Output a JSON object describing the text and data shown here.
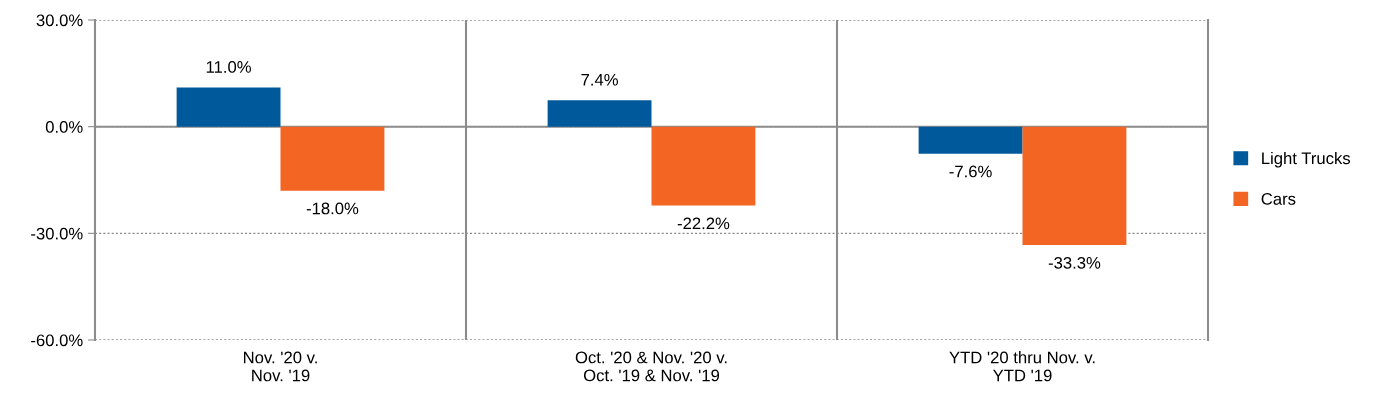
{
  "chart_data": {
    "type": "bar",
    "categories": [
      "Nov. '20 v.\nNov. '19",
      "Oct. '20 & Nov. '20 v.\nOct. '19 & Nov. '19",
      "YTD '20 thru Nov. v.\nYTD '19"
    ],
    "series": [
      {
        "name": "Light Trucks",
        "color": "#00599a",
        "values": [
          11.0,
          7.4,
          -7.6
        ],
        "value_labels": [
          "11.0%",
          "7.4%",
          "-7.6%"
        ]
      },
      {
        "name": "Cars",
        "color": "#f26522",
        "values": [
          -18.0,
          -22.2,
          -33.3
        ],
        "value_labels": [
          "-18.0%",
          "-22.2%",
          "-33.3%"
        ]
      }
    ],
    "ylim": [
      -60,
      30
    ],
    "yticks": [
      {
        "value": -60,
        "label": "-60.0%"
      },
      {
        "value": -30,
        "label": "-30.0%"
      },
      {
        "value": 0,
        "label": "0.0%"
      },
      {
        "value": 30,
        "label": "30.0%"
      }
    ],
    "grid": true,
    "legend": "right"
  }
}
